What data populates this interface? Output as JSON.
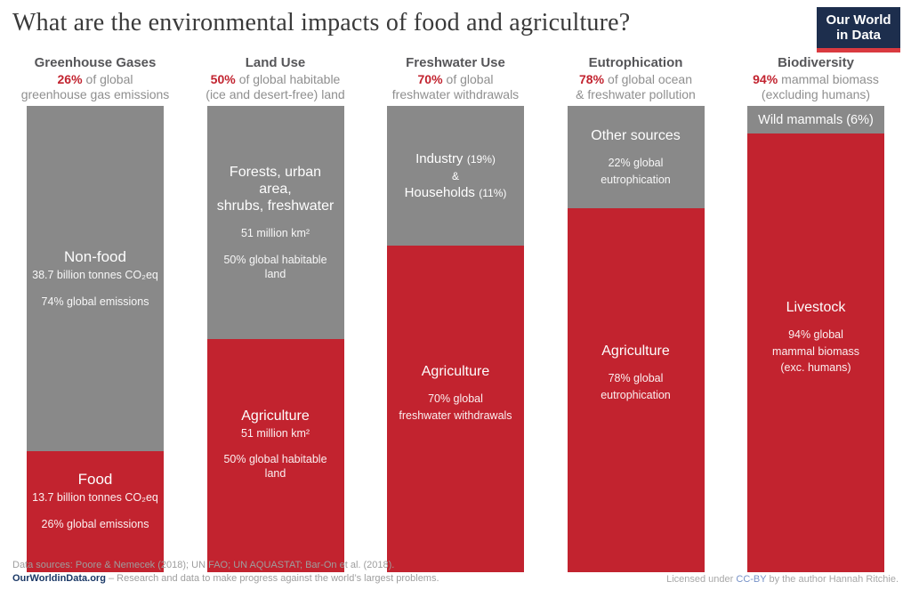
{
  "title": "What are the environmental impacts of food and agriculture?",
  "logo": {
    "line1": "Our World",
    "line2": "in Data"
  },
  "colors": {
    "food_red": "#c2232f",
    "nonfood_gray": "#898989",
    "logo_navy": "#1d2e4d",
    "logo_stripe_red": "#d93a40",
    "header_pct_red": "#c2232f"
  },
  "chart_data": {
    "type": "bar",
    "variant": "stacked-100pct-columns",
    "title": "What are the environmental impacts of food and agriculture?",
    "categories": [
      "Greenhouse Gases",
      "Land Use",
      "Freshwater Use",
      "Eutrophication",
      "Biodiversity"
    ],
    "series": [
      {
        "name": "Non-food / other sources",
        "color": "#898989",
        "values": [
          74,
          50,
          30,
          22,
          6
        ],
        "labels": [
          "Non-food — 38.7 billion tonnes CO₂eq — 74% global emissions",
          "Forests, urban area, shrubs, freshwater — 51 million km² — 50% global habitable land",
          "Industry (19%) & Households (11%)",
          "Other sources — 22% global eutrophication",
          "Wild mammals (6%)"
        ]
      },
      {
        "name": "Food / agriculture",
        "color": "#c2232f",
        "values": [
          26,
          50,
          70,
          78,
          94
        ],
        "labels": [
          "Food — 13.7 billion tonnes CO₂eq — 26% global emissions",
          "Agriculture — 51 million km² — 50% global habitable land",
          "Agriculture — 70% global freshwater withdrawals",
          "Agriculture — 78% global eutrophication",
          "Livestock — 94% global mammal biomass (exc. humans)"
        ]
      }
    ],
    "ylim": [
      0,
      100
    ],
    "legend": "none",
    "grid": false
  },
  "columns": [
    {
      "title": "Greenhouse Gases",
      "pct": "26%",
      "sub_rest": "of global",
      "sub_line2": "greenhouse gas emissions",
      "gray": {
        "label": "Non-food",
        "sub1": "38.7 billion tonnes CO₂eq",
        "sub2": "74% global emissions"
      },
      "red": {
        "label": "Food",
        "sub1": "13.7 billion tonnes CO₂eq",
        "sub2": "26% global emissions"
      }
    },
    {
      "title": "Land Use",
      "pct": "50%",
      "sub_rest": "of global habitable",
      "sub_line2": "(ice and desert-free) land",
      "gray": {
        "label_line1": "Forests, urban area,",
        "label_line2": "shrubs, freshwater",
        "sub1": "51 million km²",
        "sub2": "50% global habitable land"
      },
      "red": {
        "label": "Agriculture",
        "sub1": "51 million km²",
        "sub2": "50% global habitable land"
      }
    },
    {
      "title": "Freshwater Use",
      "pct": "70%",
      "sub_rest": "of global",
      "sub_line2": "freshwater withdrawals",
      "gray": {
        "item1_name": "Industry",
        "item1_pct": "(19%)",
        "amp": "&",
        "item2_name": "Households",
        "item2_pct": "(11%)"
      },
      "red": {
        "label": "Agriculture",
        "sub1": "70% global",
        "sub2": "freshwater withdrawals"
      }
    },
    {
      "title": "Eutrophication",
      "pct": "78%",
      "sub_rest": "of global ocean",
      "sub_line2": "& freshwater pollution",
      "gray": {
        "label": "Other sources",
        "sub1": "22% global",
        "sub2": "eutrophication"
      },
      "red": {
        "label": "Agriculture",
        "sub1": "78% global",
        "sub2": "eutrophication"
      }
    },
    {
      "title": "Biodiversity",
      "pct": "94%",
      "sub_rest": "mammal biomass",
      "sub_line2": "(excluding humans)",
      "gray": {
        "label": "Wild mammals (6%)"
      },
      "red": {
        "label": "Livestock",
        "sub1": "94% global",
        "sub2": "mammal biomass",
        "sub3": "(exc. humans)"
      }
    }
  ],
  "footer": {
    "sources": "Data sources: Poore & Nemecek (2018); UN FAO; UN AQUASTAT; Bar-On et al. (2018).",
    "site": "OurWorldinData.org",
    "tagline": " – Research and data to make progress against the world’s largest problems.",
    "license_pre": "Licensed under ",
    "license_link": "CC-BY",
    "license_post": " by the author Hannah Ritchie."
  }
}
